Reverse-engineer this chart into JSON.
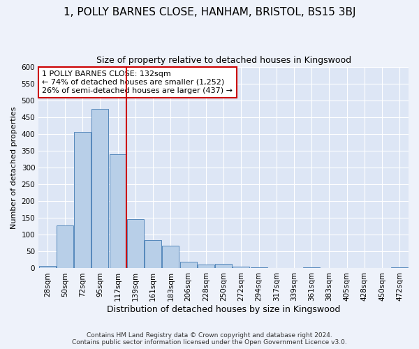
{
  "title": "1, POLLY BARNES CLOSE, HANHAM, BRISTOL, BS15 3BJ",
  "subtitle": "Size of property relative to detached houses in Kingswood",
  "xlabel": "Distribution of detached houses by size in Kingswood",
  "ylabel": "Number of detached properties",
  "categories": [
    "28sqm",
    "50sqm",
    "72sqm",
    "95sqm",
    "117sqm",
    "139sqm",
    "161sqm",
    "183sqm",
    "206sqm",
    "228sqm",
    "250sqm",
    "272sqm",
    "294sqm",
    "317sqm",
    "339sqm",
    "361sqm",
    "383sqm",
    "405sqm",
    "428sqm",
    "450sqm",
    "472sqm"
  ],
  "values": [
    8,
    127,
    406,
    475,
    340,
    147,
    85,
    68,
    20,
    12,
    14,
    6,
    4,
    1,
    0,
    3,
    0,
    0,
    0,
    0,
    3
  ],
  "bar_color": "#b8cfe8",
  "bar_edge_color": "#5588bb",
  "vline_color": "#cc0000",
  "vline_x": 4.5,
  "annotation_text": "1 POLLY BARNES CLOSE: 132sqm\n← 74% of detached houses are smaller (1,252)\n26% of semi-detached houses are larger (437) →",
  "annotation_box_color": "#ffffff",
  "annotation_box_edge_color": "#cc0000",
  "footer_line1": "Contains HM Land Registry data © Crown copyright and database right 2024.",
  "footer_line2": "Contains public sector information licensed under the Open Government Licence v3.0.",
  "background_color": "#eef2fa",
  "plot_background_color": "#dde6f5",
  "grid_color": "#ffffff",
  "ylim": [
    0,
    600
  ],
  "yticks": [
    0,
    50,
    100,
    150,
    200,
    250,
    300,
    350,
    400,
    450,
    500,
    550,
    600
  ],
  "title_fontsize": 11,
  "subtitle_fontsize": 9,
  "xlabel_fontsize": 9,
  "ylabel_fontsize": 8,
  "tick_fontsize": 7.5,
  "ann_fontsize": 8,
  "footer_fontsize": 6.5
}
